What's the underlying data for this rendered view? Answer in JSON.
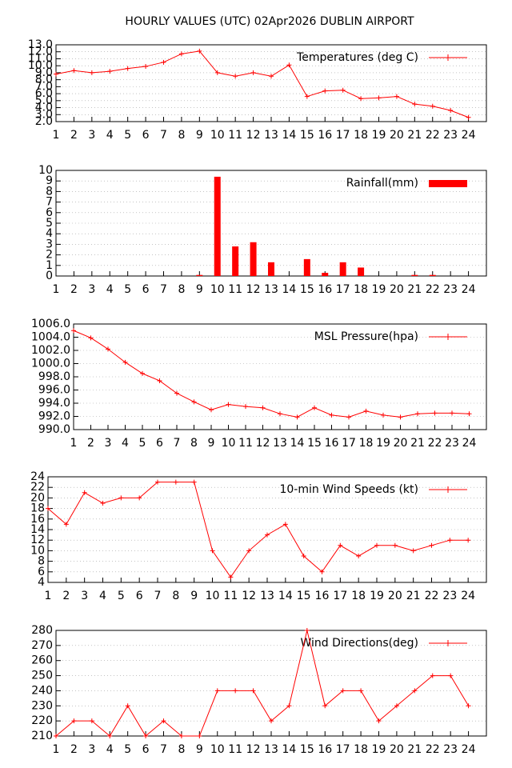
{
  "title": "HOURLY VALUES (UTC) 02Apr2026  DUBLIN AIRPORT",
  "chart_data": [
    {
      "type": "line",
      "x": [
        1,
        2,
        3,
        4,
        5,
        6,
        7,
        8,
        9,
        10,
        11,
        12,
        13,
        14,
        15,
        16,
        17,
        18,
        19,
        20,
        21,
        22,
        23,
        24
      ],
      "series": [
        {
          "name": "Temperatures (deg C)",
          "color": "#ff0000",
          "values": [
            8.8,
            9.3,
            9.0,
            9.2,
            9.6,
            9.9,
            10.5,
            11.7,
            12.1,
            9.0,
            8.5,
            9.0,
            8.5,
            10.1,
            5.6,
            6.4,
            6.5,
            5.3,
            5.4,
            5.6,
            4.5,
            4.2,
            3.6,
            2.6
          ]
        }
      ],
      "xlim": [
        1,
        25
      ],
      "xticks": [
        1,
        2,
        3,
        4,
        5,
        6,
        7,
        8,
        9,
        10,
        11,
        12,
        13,
        14,
        15,
        16,
        17,
        18,
        19,
        20,
        21,
        22,
        23,
        24
      ],
      "ylim": [
        2,
        13
      ],
      "yticks": [
        {
          "value": 2,
          "label": "2.0"
        },
        {
          "value": 3,
          "label": "3.0"
        },
        {
          "value": 4,
          "label": "4.0"
        },
        {
          "value": 5,
          "label": "5.0"
        },
        {
          "value": 6,
          "label": "6.0"
        },
        {
          "value": 7,
          "label": "7.0"
        },
        {
          "value": 8,
          "label": "8.0"
        },
        {
          "value": 9,
          "label": "9.0"
        },
        {
          "value": 10,
          "label": "10.0"
        },
        {
          "value": 11,
          "label": "11.0"
        },
        {
          "value": 12,
          "label": "12.0"
        },
        {
          "value": 13,
          "label": "13.0"
        }
      ],
      "grid": true
    },
    {
      "type": "bar",
      "x": [
        1,
        2,
        3,
        4,
        5,
        6,
        7,
        8,
        9,
        10,
        11,
        12,
        13,
        14,
        15,
        16,
        17,
        18,
        19,
        20,
        21,
        22,
        23,
        24
      ],
      "series": [
        {
          "name": "Rainfall(mm)",
          "color": "#ff0000",
          "values": [
            0,
            0,
            0,
            0,
            0,
            0,
            0,
            0,
            0.1,
            9.4,
            2.8,
            3.2,
            1.3,
            0,
            1.6,
            0.3,
            1.3,
            0.8,
            0,
            0,
            0.1,
            0.1,
            0,
            0
          ]
        }
      ],
      "xlim": [
        1,
        25
      ],
      "xticks": [
        1,
        2,
        3,
        4,
        5,
        6,
        7,
        8,
        9,
        10,
        11,
        12,
        13,
        14,
        15,
        16,
        17,
        18,
        19,
        20,
        21,
        22,
        23,
        24
      ],
      "ylim": [
        0,
        10
      ],
      "yticks": [
        0,
        1,
        2,
        3,
        4,
        5,
        6,
        7,
        8,
        9,
        10
      ],
      "grid": true
    },
    {
      "type": "line",
      "x": [
        1,
        2,
        3,
        4,
        5,
        6,
        7,
        8,
        9,
        10,
        11,
        12,
        13,
        14,
        15,
        16,
        17,
        18,
        19,
        20,
        21,
        22,
        23,
        24
      ],
      "series": [
        {
          "name": "MSL Pressure(hpa)",
          "color": "#ff0000",
          "values": [
            1005.0,
            1003.9,
            1002.2,
            1000.2,
            998.5,
            997.4,
            995.5,
            994.2,
            993.0,
            993.8,
            993.5,
            993.3,
            992.4,
            991.9,
            993.3,
            992.2,
            991.9,
            992.8,
            992.2,
            991.9,
            992.4,
            992.5,
            992.5,
            992.4
          ]
        }
      ],
      "xlim": [
        1,
        25
      ],
      "xticks": [
        1,
        2,
        3,
        4,
        5,
        6,
        7,
        8,
        9,
        10,
        11,
        12,
        13,
        14,
        15,
        16,
        17,
        18,
        19,
        20,
        21,
        22,
        23,
        24
      ],
      "ylim": [
        990,
        1006
      ],
      "yticks": [
        {
          "value": 990,
          "label": "990.0"
        },
        {
          "value": 992,
          "label": "992.0"
        },
        {
          "value": 994,
          "label": "994.0"
        },
        {
          "value": 996,
          "label": "996.0"
        },
        {
          "value": 998,
          "label": "998.0"
        },
        {
          "value": 1000,
          "label": "1000.0"
        },
        {
          "value": 1002,
          "label": "1002.0"
        },
        {
          "value": 1004,
          "label": "1004.0"
        },
        {
          "value": 1006,
          "label": "1006.0"
        }
      ],
      "grid": true
    },
    {
      "type": "line",
      "x": [
        1,
        2,
        3,
        4,
        5,
        6,
        7,
        8,
        9,
        10,
        11,
        12,
        13,
        14,
        15,
        16,
        17,
        18,
        19,
        20,
        21,
        22,
        23,
        24
      ],
      "series": [
        {
          "name": "10-min Wind Speeds (kt)",
          "color": "#ff0000",
          "values": [
            18,
            15,
            21,
            19,
            20,
            20,
            23,
            23,
            23,
            10,
            5,
            10,
            13,
            15,
            9,
            6,
            11,
            9,
            11,
            11,
            10,
            11,
            12,
            12
          ]
        }
      ],
      "xlim": [
        1,
        25
      ],
      "xticks": [
        1,
        2,
        3,
        4,
        5,
        6,
        7,
        8,
        9,
        10,
        11,
        12,
        13,
        14,
        15,
        16,
        17,
        18,
        19,
        20,
        21,
        22,
        23,
        24
      ],
      "ylim": [
        4,
        24
      ],
      "yticks": [
        4,
        6,
        8,
        10,
        12,
        14,
        16,
        18,
        20,
        22,
        24
      ],
      "grid": true
    },
    {
      "type": "line",
      "x": [
        1,
        2,
        3,
        4,
        5,
        6,
        7,
        8,
        9,
        10,
        11,
        12,
        13,
        14,
        15,
        16,
        17,
        18,
        19,
        20,
        21,
        22,
        23,
        24
      ],
      "series": [
        {
          "name": "Wind Directions(deg)",
          "color": "#ff0000",
          "values": [
            210,
            220,
            220,
            210,
            230,
            210,
            220,
            210,
            210,
            240,
            240,
            240,
            220,
            230,
            280,
            230,
            240,
            240,
            220,
            230,
            240,
            250,
            250,
            230
          ]
        }
      ],
      "xlim": [
        1,
        25
      ],
      "xticks": [
        1,
        2,
        3,
        4,
        5,
        6,
        7,
        8,
        9,
        10,
        11,
        12,
        13,
        14,
        15,
        16,
        17,
        18,
        19,
        20,
        21,
        22,
        23,
        24
      ],
      "ylim": [
        210,
        280
      ],
      "yticks": [
        210,
        220,
        230,
        240,
        250,
        260,
        270,
        280
      ],
      "grid": true
    }
  ]
}
